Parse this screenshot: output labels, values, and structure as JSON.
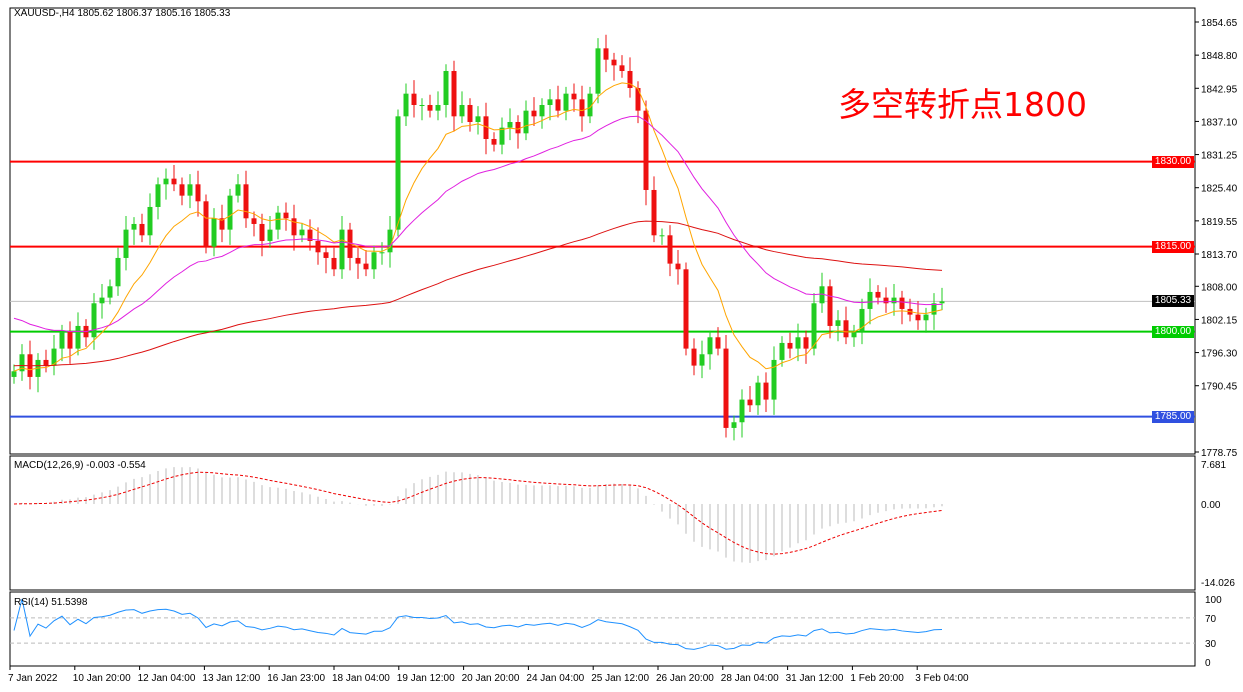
{
  "header": {
    "symbol_info": "XAUUSD-,H4  1805.62 1806.37 1805.16 1805.33",
    "macd_label": "MACD(12,26,9) -0.003 -0.554",
    "rsi_label": "RSI(14) 51.5398"
  },
  "annotation": "多空转折点1800",
  "price_axis": {
    "ticks": [
      "1854.65",
      "1848.80",
      "1842.95",
      "1837.10",
      "1831.25",
      "1825.40",
      "1819.55",
      "1813.70",
      "1808.00",
      "1802.15",
      "1796.30",
      "1790.45",
      "1778.75"
    ],
    "min": 1778.75,
    "max": 1854.65
  },
  "levels": [
    {
      "price": "1830.00",
      "color": "#ff0000"
    },
    {
      "price": "1815.00",
      "color": "#ff0000"
    },
    {
      "price": "1800.00",
      "color": "#00cc00"
    },
    {
      "price": "1785.00",
      "color": "#3050e0"
    }
  ],
  "current_price": "1805.33",
  "macd_axis": [
    "7.681",
    "0.00",
    "-14.026"
  ],
  "rsi_axis": [
    "100",
    "70",
    "30",
    "0"
  ],
  "time_labels": [
    "7 Jan 2022",
    "10 Jan 20:00",
    "12 Jan 04:00",
    "13 Jan 12:00",
    "16 Jan 23:00",
    "18 Jan 04:00",
    "19 Jan 12:00",
    "20 Jan 20:00",
    "24 Jan 04:00",
    "25 Jan 12:00",
    "26 Jan 20:00",
    "28 Jan 04:00",
    "31 Jan 12:00",
    "1 Feb 20:00",
    "3 Feb 04:00"
  ],
  "colors": {
    "bull": "#22cc22",
    "bear": "#ee1111",
    "ma_fast": "#ffa500",
    "ma_mid": "#e020e0",
    "ma_slow": "#dd1111"
  },
  "chart_data": {
    "type": "candlestick",
    "closes": [
      1793,
      1796,
      1792,
      1795,
      1794,
      1797,
      1800,
      1797,
      1801,
      1799,
      1805,
      1806,
      1808,
      1813,
      1818,
      1819,
      1817,
      1822,
      1826,
      1827,
      1826,
      1824,
      1826,
      1823,
      1815,
      1820,
      1818,
      1824,
      1826,
      1820,
      1819,
      1816,
      1818,
      1821,
      1820,
      1817,
      1818,
      1816,
      1814,
      1813,
      1811,
      1818,
      1813,
      1812,
      1811,
      1814,
      1814,
      1818,
      1838,
      1842,
      1840,
      1840,
      1839,
      1840,
      1846,
      1838,
      1840,
      1837,
      1838,
      1834,
      1833,
      1836,
      1837,
      1835,
      1839,
      1838,
      1840,
      1841,
      1839,
      1842,
      1841,
      1838,
      1842,
      1850,
      1848,
      1847,
      1846,
      1843,
      1839,
      1825,
      1817,
      1817,
      1812,
      1811,
      1797,
      1794,
      1796,
      1799,
      1797,
      1783,
      1784,
      1788,
      1787,
      1791,
      1788,
      1795,
      1798,
      1797,
      1799,
      1797,
      1805,
      1808,
      1801,
      1802,
      1799,
      1800,
      1804,
      1807,
      1806,
      1805,
      1806,
      1804,
      1803,
      1802,
      1803,
      1805,
      1805.33
    ]
  }
}
